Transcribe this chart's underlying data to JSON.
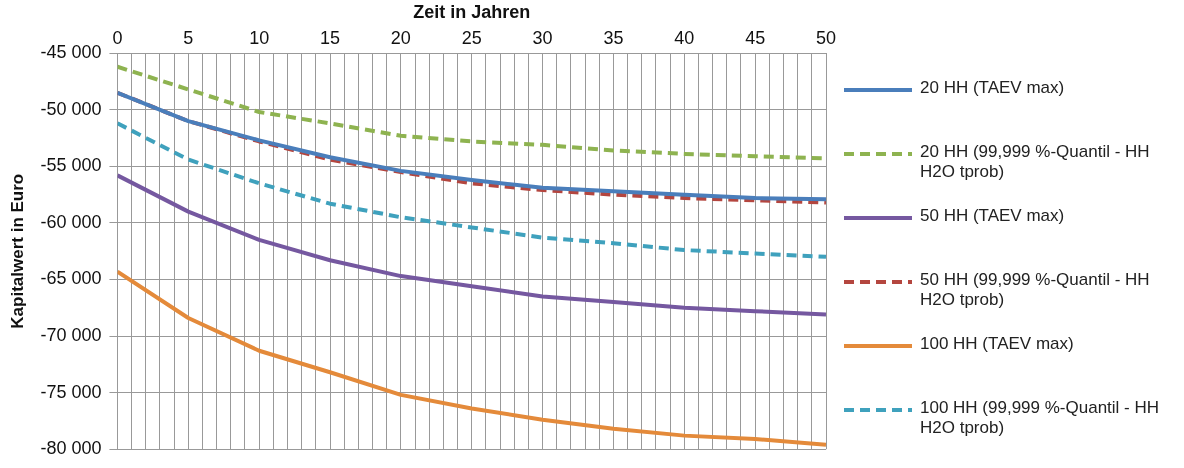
{
  "chart_data": {
    "type": "line",
    "xlabel": "Zeit in Jahren",
    "ylabel": "Kapitalwert in Euro",
    "x": [
      0,
      5,
      10,
      15,
      20,
      25,
      30,
      35,
      40,
      45,
      50
    ],
    "xlim": [
      0,
      50
    ],
    "xticks": [
      0,
      {
        "value": 1,
        "label": null
      },
      {
        "value": 2,
        "label": null
      },
      {
        "value": 3,
        "label": null
      },
      {
        "value": 4,
        "label": null
      },
      5,
      {
        "value": 6,
        "label": null
      },
      {
        "value": 7,
        "label": null
      },
      {
        "value": 8,
        "label": null
      },
      {
        "value": 9,
        "label": null
      },
      10,
      {
        "value": 11,
        "label": null
      },
      {
        "value": 12,
        "label": null
      },
      {
        "value": 13,
        "label": null
      },
      {
        "value": 14,
        "label": null
      },
      15,
      {
        "value": 16,
        "label": null
      },
      {
        "value": 17,
        "label": null
      },
      {
        "value": 18,
        "label": null
      },
      {
        "value": 19,
        "label": null
      },
      20,
      {
        "value": 21,
        "label": null
      },
      {
        "value": 22,
        "label": null
      },
      {
        "value": 23,
        "label": null
      },
      {
        "value": 24,
        "label": null
      },
      25,
      {
        "value": 26,
        "label": null
      },
      {
        "value": 27,
        "label": null
      },
      {
        "value": 28,
        "label": null
      },
      {
        "value": 29,
        "label": null
      },
      30,
      {
        "value": 31,
        "label": null
      },
      {
        "value": 32,
        "label": null
      },
      {
        "value": 33,
        "label": null
      },
      {
        "value": 34,
        "label": null
      },
      35,
      {
        "value": 36,
        "label": null
      },
      {
        "value": 37,
        "label": null
      },
      {
        "value": 38,
        "label": null
      },
      {
        "value": 39,
        "label": null
      },
      40,
      {
        "value": 41,
        "label": null
      },
      {
        "value": 42,
        "label": null
      },
      {
        "value": 43,
        "label": null
      },
      {
        "value": 44,
        "label": null
      },
      45,
      {
        "value": 46,
        "label": null
      },
      {
        "value": 47,
        "label": null
      },
      {
        "value": 48,
        "label": null
      },
      {
        "value": 49,
        "label": null
      },
      50
    ],
    "ylim": [
      -80000,
      -45000
    ],
    "yticks": [
      {
        "value": -45000,
        "label": "-45 000"
      },
      {
        "value": -50000,
        "label": "-50 000"
      },
      {
        "value": -55000,
        "label": "-55 000"
      },
      {
        "value": -60000,
        "label": "-60 000"
      },
      {
        "value": -65000,
        "label": "-65 000"
      },
      {
        "value": -70000,
        "label": "-70 000"
      },
      {
        "value": -75000,
        "label": "-75 000"
      },
      {
        "value": -80000,
        "label": "-80 000"
      }
    ],
    "grid": true,
    "legend": "right",
    "marker": "none",
    "series": [
      {
        "name": "20 HH (TAEV max)",
        "color": "#4a7ebb",
        "line_style": "solid",
        "values": [
          -48500,
          -51000,
          -52700,
          -54200,
          -55400,
          -56200,
          -56900,
          -57200,
          -57500,
          -57800,
          -57900
        ]
      },
      {
        "name": "20 HH (99,999 %-Quantil - HH H2O tprob)",
        "color": "#8eb350",
        "line_style": "dashed",
        "values": [
          -46200,
          -48200,
          -50200,
          -51200,
          -52300,
          -52800,
          -53100,
          -53600,
          -53900,
          -54100,
          -54300
        ]
      },
      {
        "name": "50 HH (TAEV max)",
        "color": "#7558a0",
        "line_style": "solid",
        "values": [
          -55800,
          -59000,
          -61500,
          -63300,
          -64700,
          -65600,
          -66500,
          -67000,
          -67500,
          -67800,
          -68100
        ]
      },
      {
        "name": "50 HH (99,999 %-Quantil - HH H2O tprob)",
        "color": "#b4463f",
        "line_style": "dashed",
        "values": [
          -48500,
          -51000,
          -52800,
          -54400,
          -55500,
          -56500,
          -57100,
          -57500,
          -57800,
          -58000,
          -58200
        ]
      },
      {
        "name": "100 HH (TAEV max)",
        "color": "#e48a3a",
        "line_style": "solid",
        "values": [
          -64300,
          -68400,
          -71300,
          -73200,
          -75200,
          -76400,
          -77400,
          -78200,
          -78800,
          -79100,
          -79600
        ]
      },
      {
        "name": "100 HH (99,999 %-Quantil - HH H2O tprob)",
        "color": "#3fa1bd",
        "line_style": "dashed",
        "values": [
          -51200,
          -54400,
          -56500,
          -58300,
          -59500,
          -60400,
          -61300,
          -61800,
          -62400,
          -62700,
          -63000
        ]
      }
    ]
  }
}
